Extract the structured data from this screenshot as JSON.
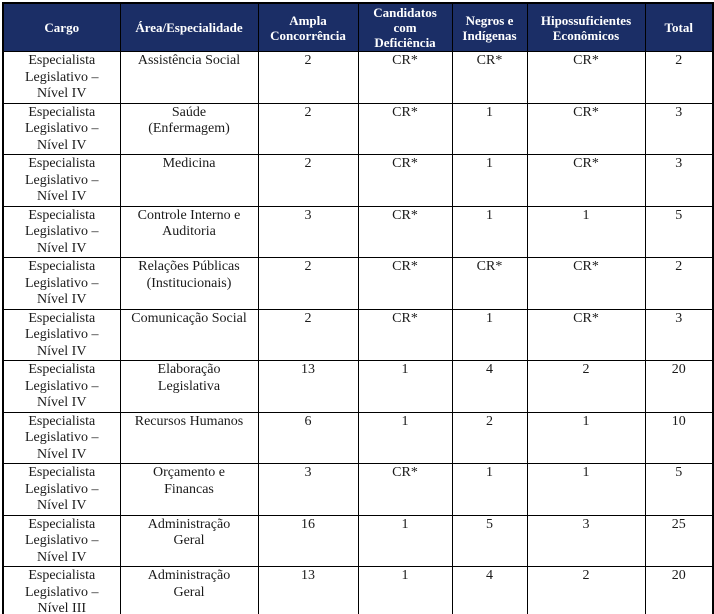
{
  "table": {
    "columns": [
      "Cargo",
      "Área/Especialidade",
      "Ampla\nConcorrência",
      "Candidatos\ncom\nDeficiência",
      "Negros e\nIndígenas",
      "Hipossuficientes\nEconômicos",
      "Total"
    ],
    "rows": [
      [
        "Especialista\nLegislativo –\nNível IV",
        "Assistência Social",
        "2",
        "CR*",
        "CR*",
        "CR*",
        "2"
      ],
      [
        "Especialista\nLegislativo –\nNível IV",
        "Saúde\n(Enfermagem)",
        "2",
        "CR*",
        "1",
        "CR*",
        "3"
      ],
      [
        "Especialista\nLegislativo –\nNível IV",
        "Medicina",
        "2",
        "CR*",
        "1",
        "CR*",
        "3"
      ],
      [
        "Especialista\nLegislativo –\nNível IV",
        "Controle Interno e\nAuditoria",
        "3",
        "CR*",
        "1",
        "1",
        "5"
      ],
      [
        "Especialista\nLegislativo –\nNível IV",
        "Relações Públicas\n(Institucionais)",
        "2",
        "CR*",
        "CR*",
        "CR*",
        "2"
      ],
      [
        "Especialista\nLegislativo –\nNível IV",
        "Comunicação Social",
        "2",
        "CR*",
        "1",
        "CR*",
        "3"
      ],
      [
        "Especialista\nLegislativo –\nNível IV",
        "Elaboração\nLegislativa",
        "13",
        "1",
        "4",
        "2",
        "20"
      ],
      [
        "Especialista\nLegislativo –\nNível IV",
        "Recursos Humanos",
        "6",
        "1",
        "2",
        "1",
        "10"
      ],
      [
        "Especialista\nLegislativo –\nNível IV",
        "Orçamento e\nFinancas",
        "3",
        "CR*",
        "1",
        "1",
        "5"
      ],
      [
        "Especialista\nLegislativo –\nNível IV",
        "Administração\nGeral",
        "16",
        "1",
        "5",
        "3",
        "25"
      ],
      [
        "Especialista\nLegislativo –\nNível III",
        "Administração\nGeral",
        "13",
        "1",
        "4",
        "2",
        "20"
      ]
    ],
    "colors": {
      "header_bg": "#1b2e66",
      "header_text": "#ffffff",
      "body_text": "#1a1a1a",
      "border": "#000000"
    }
  }
}
